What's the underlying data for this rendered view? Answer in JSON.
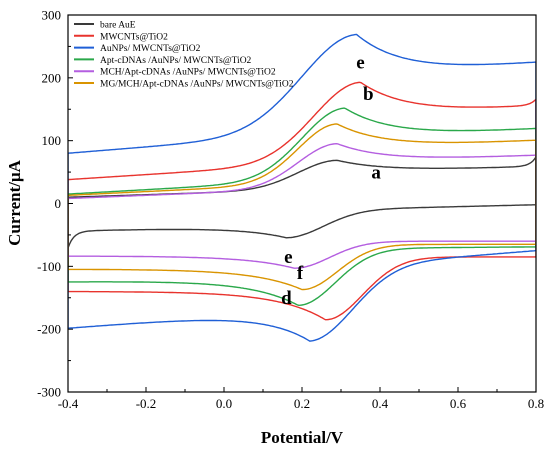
{
  "chart_data": {
    "type": "line",
    "title": "",
    "xlabel": "Potential/V",
    "ylabel": "Current/μA",
    "xlim": [
      -0.4,
      0.8
    ],
    "ylim": [
      -300,
      300
    ],
    "x_ticks": [
      "-0.4",
      "-0.2",
      "0.0",
      "0.2",
      "0.4",
      "0.6",
      "0.8"
    ],
    "y_ticks": [
      "-300",
      "-200",
      "-100",
      "0",
      "100",
      "200",
      "300"
    ],
    "grid": false,
    "legend_position": "top-left",
    "series": [
      {
        "name": "bare AuE",
        "color": "#3a3a3a",
        "params": {
          "baseOx": 10,
          "baseRed": -20,
          "slopeOx": 20,
          "slopeRed": 15,
          "peakOx": 45,
          "epOx": 0.29,
          "wOx": 0.1,
          "peakRed": -43,
          "epRed": 0.16,
          "wRed": 0.095,
          "edgeHi": 15,
          "edgeLo": -27
        }
      },
      {
        "name": "MWCNTs@TiO2",
        "color": "#e8332d",
        "params": {
          "baseOx": 38,
          "baseRed": -85,
          "slopeOx": 40,
          "slopeRed": 0,
          "peakOx": 125,
          "epOx": 0.35,
          "wOx": 0.12,
          "peakRed": -100,
          "epRed": 0.26,
          "wRed": 0.095,
          "edgeHi": 10,
          "edgeLo": 0
        }
      },
      {
        "name": "AuNPs/ MWCNTs@TiO2",
        "color": "#1f5fd6",
        "params": {
          "baseOx": 80,
          "baseRed": -135,
          "slopeOx": 50,
          "slopeRed": 50,
          "peakOx": 152,
          "epOx": 0.34,
          "wOx": 0.14,
          "peakRed": -115,
          "epRed": 0.22,
          "wRed": 0.11,
          "edgeHi": 0,
          "edgeLo": 0
        }
      },
      {
        "name": "Apt-cDNAs /AuNPs/ MWCNTs@TiO2",
        "color": "#2aa84a",
        "params": {
          "baseOx": 15,
          "baseRed": -75,
          "slopeOx": 35,
          "slopeRed": 5,
          "peakOx": 112,
          "epOx": 0.31,
          "wOx": 0.11,
          "peakRed": -90,
          "epRed": 0.19,
          "wRed": 0.095,
          "edgeHi": 0,
          "edgeLo": 0
        }
      },
      {
        "name": "MCH/Apt-cDNAs /AuNPs/ MWCNTs@TiO2",
        "color": "#b45ee0",
        "params": {
          "baseOx": 8,
          "baseRed": -60,
          "slopeOx": 25,
          "slopeRed": 0,
          "peakOx": 70,
          "epOx": 0.29,
          "wOx": 0.1,
          "peakRed": -43,
          "epRed": 0.18,
          "wRed": 0.09,
          "edgeHi": 0,
          "edgeLo": 0
        }
      },
      {
        "name": "MG/MCH/Apt-cDNAs /AuNPs/ MWCNTs@TiO2",
        "color": "#d99400",
        "params": {
          "baseOx": 13,
          "baseRed": -65,
          "slopeOx": 30,
          "slopeRed": 0,
          "peakOx": 93,
          "epOx": 0.29,
          "wOx": 0.1,
          "peakRed": -72,
          "epRed": 0.2,
          "wRed": 0.09,
          "edgeHi": 0,
          "edgeLo": 0
        }
      }
    ],
    "annotations": [
      {
        "text": "e",
        "x": 0.35,
        "y": 215
      },
      {
        "text": "b",
        "x": 0.37,
        "y": 165
      },
      {
        "text": "a",
        "x": 0.39,
        "y": 40
      },
      {
        "text": "e",
        "x": 0.165,
        "y": -95
      },
      {
        "text": "f",
        "x": 0.195,
        "y": -120
      },
      {
        "text": "d",
        "x": 0.16,
        "y": -160
      }
    ]
  }
}
